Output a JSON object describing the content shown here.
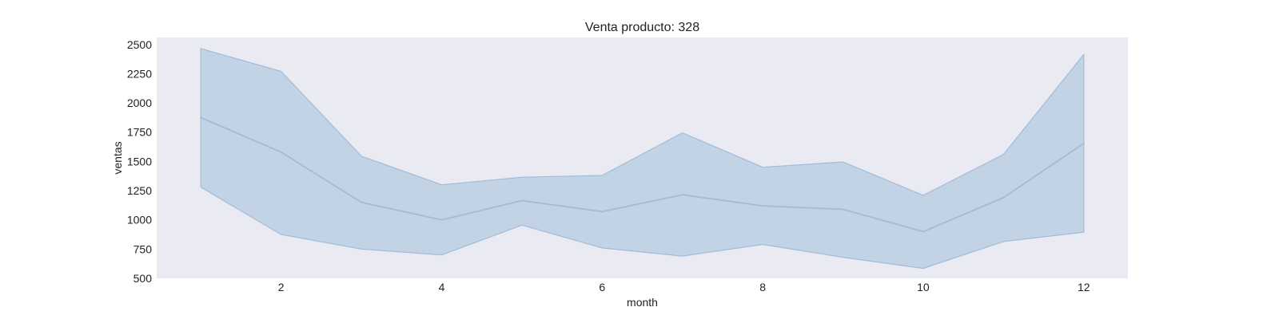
{
  "chart_data": {
    "type": "line",
    "title": "Venta producto: 328",
    "xlabel": "month",
    "ylabel": "ventas",
    "xlim": [
      0.45,
      12.55
    ],
    "ylim": [
      500,
      2560
    ],
    "xticks": [
      2,
      4,
      6,
      8,
      10,
      12
    ],
    "yticks": [
      500,
      750,
      1000,
      1250,
      1500,
      1750,
      2000,
      2250,
      2500
    ],
    "grid": false,
    "x": [
      1,
      2,
      3,
      4,
      5,
      6,
      7,
      8,
      9,
      10,
      11,
      12
    ],
    "series": [
      {
        "values": [
          1875,
          1580,
          1150,
          1000,
          1165,
          1070,
          1215,
          1120,
          1090,
          900,
          1190,
          1655
        ],
        "lower": [
          1280,
          875,
          750,
          700,
          955,
          760,
          690,
          790,
          680,
          585,
          815,
          895
        ],
        "upper": [
          2465,
          2270,
          1545,
          1300,
          1365,
          1380,
          1745,
          1450,
          1495,
          1210,
          1560,
          2415
        ]
      }
    ],
    "colors": {
      "plot_background": "#eaeaf2",
      "band_fill": "#c2d3e6",
      "line": "#a2bcd8"
    }
  }
}
